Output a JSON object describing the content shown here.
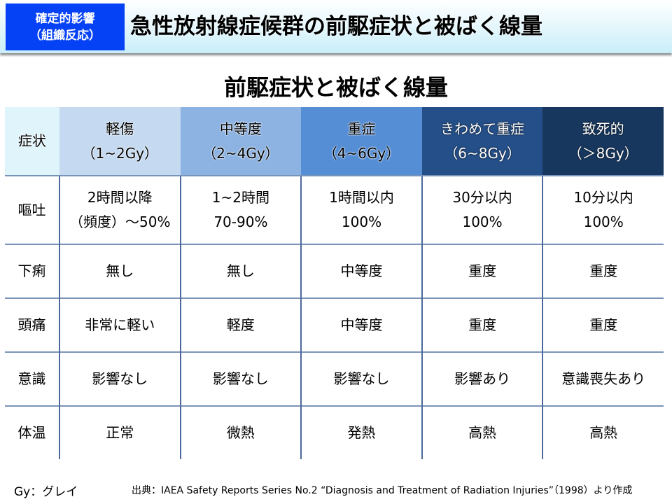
{
  "header": {
    "badge_line1": "確定的影響",
    "badge_line2": "（組織反応）",
    "title": "急性放射線症候群の前駆症状と被ばく線量",
    "badge_color": "#0541f5"
  },
  "subtitle": "前駆症状と被ばく線量",
  "table": {
    "corner": "症状",
    "columns": [
      {
        "name": "軽傷",
        "dose": "（1~2Gy）",
        "color": "#c5d9f1"
      },
      {
        "name": "中等度",
        "dose": "（2~4Gy）",
        "color": "#8db3e2"
      },
      {
        "name": "重症",
        "dose": "（4~6Gy）",
        "color": "#558ed5"
      },
      {
        "name": "きわめて重症",
        "dose": "（6~8Gy）",
        "color": "#254f88"
      },
      {
        "name": "致死的",
        "dose": "（＞8Gy）",
        "color": "#17375e"
      }
    ],
    "rows": [
      {
        "symptom": "嘔吐",
        "cells": [
          [
            "2時間以降",
            "（頻度）～50%"
          ],
          [
            "1~2時間",
            "70-90%"
          ],
          [
            "1時間以内",
            "100%"
          ],
          [
            "30分以内",
            "100%"
          ],
          [
            "10分以内",
            "100%"
          ]
        ]
      },
      {
        "symptom": "下痢",
        "cells": [
          [
            "無し"
          ],
          [
            "無し"
          ],
          [
            "中等度"
          ],
          [
            "重度"
          ],
          [
            "重度"
          ]
        ]
      },
      {
        "symptom": "頭痛",
        "cells": [
          [
            "非常に軽い"
          ],
          [
            "軽度"
          ],
          [
            "中等度"
          ],
          [
            "重度"
          ],
          [
            "重度"
          ]
        ]
      },
      {
        "symptom": "意識",
        "cells": [
          [
            "影響なし"
          ],
          [
            "影響なし"
          ],
          [
            "影響なし"
          ],
          [
            "影響あり"
          ],
          [
            "意識喪失あり"
          ]
        ]
      },
      {
        "symptom": "体温",
        "cells": [
          [
            "正常"
          ],
          [
            "微熱"
          ],
          [
            "発熱"
          ],
          [
            "高熱"
          ],
          [
            "高熱"
          ]
        ]
      }
    ]
  },
  "footer": {
    "unit_note": "Gy：グレイ",
    "source": "出典：IAEA Safety Reports Series No.2 “Diagnosis and Treatment of Radiation Injuries”（1998）より作成"
  }
}
